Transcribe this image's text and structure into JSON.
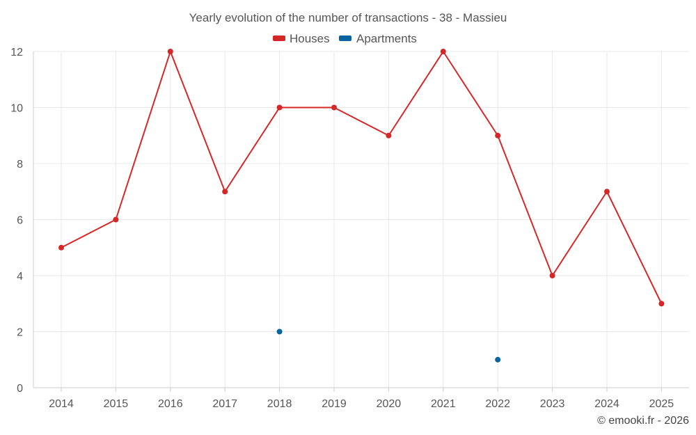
{
  "chart_data": {
    "type": "line",
    "title": "Yearly evolution of the number of transactions - 38 - Massieu",
    "categories": [
      "2014",
      "2015",
      "2016",
      "2017",
      "2018",
      "2019",
      "2020",
      "2021",
      "2022",
      "2023",
      "2024",
      "2025"
    ],
    "series": [
      {
        "name": "Houses",
        "color": "#d62728",
        "values": [
          5,
          6,
          12,
          7,
          10,
          10,
          9,
          12,
          9,
          4,
          7,
          3
        ]
      },
      {
        "name": "Apartments",
        "color": "#08649e",
        "values": [
          null,
          null,
          null,
          null,
          2,
          null,
          null,
          null,
          1,
          null,
          null,
          null
        ]
      }
    ],
    "ylim": [
      0,
      12
    ],
    "yticks": [
      "0",
      "2",
      "4",
      "6",
      "8",
      "10",
      "12"
    ],
    "xlabel": "",
    "ylabel": "",
    "grid": true,
    "legend_position": "top-center"
  },
  "credit": "© emooki.fr - 2026"
}
